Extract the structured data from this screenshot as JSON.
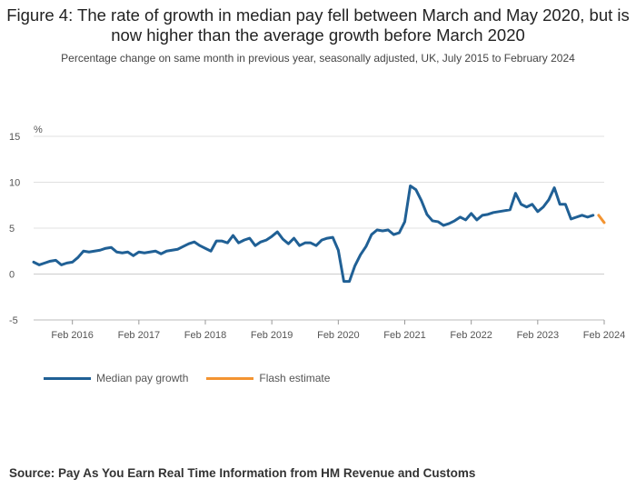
{
  "title": "Figure 4: The rate of growth in median pay fell between March and May 2020, but is now higher than the average growth before March 2020",
  "subtitle": "Percentage change on same month in previous year, seasonally adjusted, UK, July 2015 to February 2024",
  "source": "Source: Pay As You Earn Real Time Information from HM Revenue and Customs",
  "colors": {
    "median": "#206095",
    "flash": "#f39431",
    "grid": "#e0e0e0",
    "zero": "#cccccc"
  },
  "chart_data": {
    "type": "line",
    "ylabel": "%",
    "ylim": [
      -5,
      15
    ],
    "yticks": [
      15,
      10,
      5,
      0,
      -5
    ],
    "xticks": [
      "Feb 2016",
      "Feb 2017",
      "Feb 2018",
      "Feb 2019",
      "Feb 2020",
      "Feb 2021",
      "Feb 2022",
      "Feb 2023",
      "Feb 2024"
    ],
    "x_start": "Jul 2015",
    "x_end": "Feb 2024",
    "legend_position": "bottom-left",
    "series": [
      {
        "name": "Median pay growth",
        "start": "Jul 2015",
        "values": [
          1.3,
          1.0,
          1.2,
          1.4,
          1.5,
          1.0,
          1.2,
          1.3,
          1.8,
          2.5,
          2.4,
          2.5,
          2.6,
          2.8,
          2.9,
          2.4,
          2.3,
          2.4,
          2.0,
          2.4,
          2.3,
          2.4,
          2.5,
          2.2,
          2.5,
          2.6,
          2.7,
          3.0,
          3.3,
          3.5,
          3.1,
          2.8,
          2.5,
          3.6,
          3.6,
          3.4,
          4.2,
          3.4,
          3.7,
          3.9,
          3.1,
          3.5,
          3.7,
          4.1,
          4.6,
          3.8,
          3.3,
          3.9,
          3.1,
          3.4,
          3.4,
          3.1,
          3.7,
          3.9,
          4.0,
          2.6,
          -0.8,
          -0.8,
          0.9,
          2.1,
          3.0,
          4.3,
          4.8,
          4.7,
          4.8,
          4.3,
          4.5,
          5.7,
          9.6,
          9.2,
          8.0,
          6.5,
          5.8,
          5.7,
          5.3,
          5.5,
          5.8,
          6.2,
          5.9,
          6.6,
          5.9,
          6.4,
          6.5,
          6.7,
          6.8,
          6.9,
          7.0,
          8.8,
          7.6,
          7.3,
          7.6,
          6.8,
          7.3,
          8.1,
          9.4,
          7.6,
          7.6,
          6.0,
          6.2,
          6.4,
          6.2,
          6.4
        ]
      },
      {
        "name": "Flash estimate",
        "start": "Jan 2024",
        "values": [
          6.4,
          5.6
        ]
      }
    ]
  },
  "legend": [
    {
      "label": "Median pay growth"
    },
    {
      "label": "Flash estimate"
    }
  ]
}
